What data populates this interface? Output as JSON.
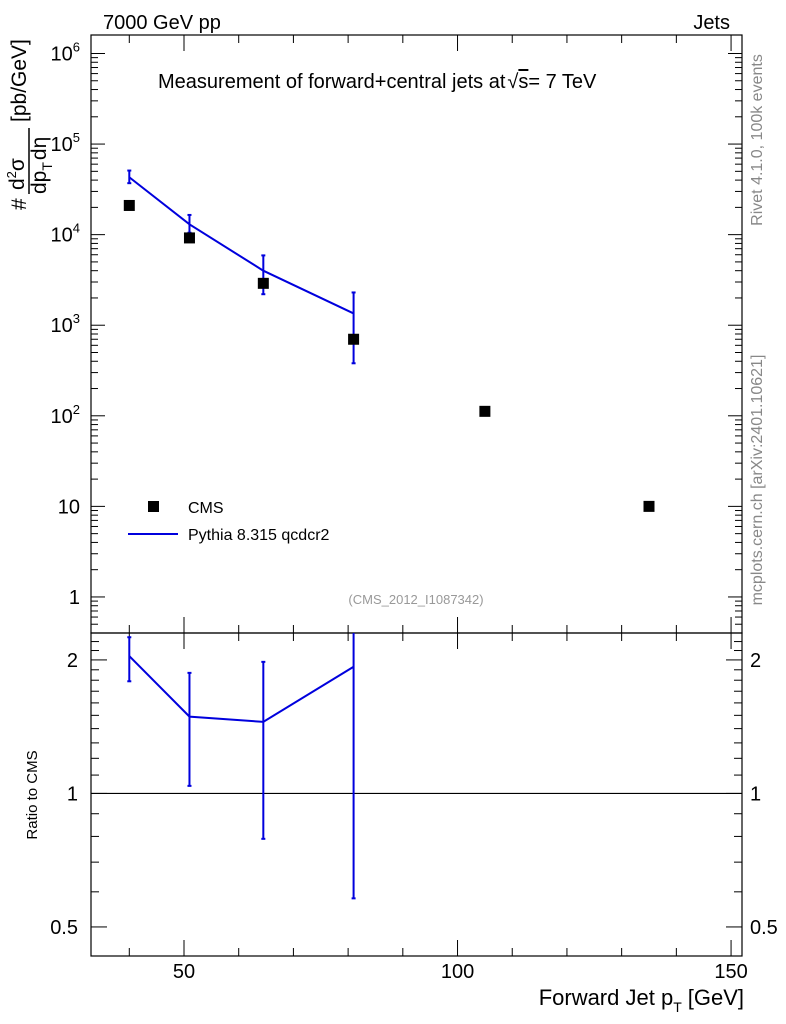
{
  "header": {
    "left": "7000 GeV pp",
    "right": "Jets"
  },
  "side_labels": {
    "rivet": "Rivet 4.1.0,  100k events",
    "mcplots": "mcplots.cern.ch [arXiv:2401.10621]"
  },
  "colors": {
    "data": "#000000",
    "mc": "#0000dd",
    "watermark": "#999999"
  },
  "chart_data": [
    {
      "type": "line",
      "title": "Measurement of forward+central jets at √s = 7 TeV",
      "title_parts": {
        "main": "Measurement of forward+central jets at",
        "sqrt_arg": "s",
        "energy": "= 7 TeV"
      },
      "ylabel": "# d²σ / dp_T dη [pb/GeV]",
      "ylabel_parts": {
        "hash": "#",
        "num": "d",
        "num_sup": "2",
        "num_sym": "σ",
        "den_dp": "dp",
        "den_sub": "T",
        "den_deta": "dη",
        "units": "[pb/GeV]"
      },
      "yscale": "log",
      "ylim": [
        0.4,
        1600000
      ],
      "xlim": [
        33,
        152
      ],
      "watermark": "(CMS_2012_I1087342)",
      "ytick_labels": [
        {
          "value": 1,
          "base": "1",
          "exp": ""
        },
        {
          "value": 10,
          "base": "10",
          "exp": ""
        },
        {
          "value": 100,
          "base": "10",
          "exp": "2"
        },
        {
          "value": 1000,
          "base": "10",
          "exp": "3"
        },
        {
          "value": 10000,
          "base": "10",
          "exp": "4"
        },
        {
          "value": 100000,
          "base": "10",
          "exp": "5"
        },
        {
          "value": 1000000,
          "base": "10",
          "exp": "6"
        }
      ],
      "legend_position": "bottom-left",
      "series": [
        {
          "name": "CMS",
          "kind": "markers",
          "x": [
            40,
            51,
            64.5,
            81,
            105,
            135
          ],
          "y": [
            21000,
            9200,
            2900,
            700,
            112,
            10
          ]
        },
        {
          "name": "Pythia 8.315 qcdcr2",
          "kind": "line",
          "x": [
            40,
            51,
            64.5,
            81
          ],
          "y": [
            43000,
            13000,
            4000,
            1350
          ],
          "err_low": [
            37000,
            10500,
            2200,
            380
          ],
          "err_high": [
            51000,
            16500,
            5900,
            2300
          ]
        }
      ]
    },
    {
      "type": "line",
      "title": "",
      "ylabel": "Ratio to CMS",
      "xlabel": "Forward Jet p_T [GeV]",
      "xlabel_parts": {
        "main": "Forward Jet p",
        "sub": "T",
        "units": "[GeV]"
      },
      "yscale": "log",
      "ylim": [
        0.43,
        2.3
      ],
      "xlim": [
        33,
        152
      ],
      "xticks": [
        50,
        100,
        150
      ],
      "yticks": [
        0.5,
        1,
        2
      ],
      "ytick_labels": [
        "0.5",
        "1",
        "2"
      ],
      "reference_line": 1,
      "series": [
        {
          "name": "Pythia 8.315 qcdcr2",
          "x": [
            40,
            51,
            64.5,
            81
          ],
          "y": [
            2.04,
            1.49,
            1.45,
            1.93
          ],
          "err_low": [
            1.79,
            1.04,
            0.79,
            0.58
          ],
          "err_high": [
            2.25,
            1.87,
            1.98,
            2.3
          ]
        }
      ]
    }
  ]
}
